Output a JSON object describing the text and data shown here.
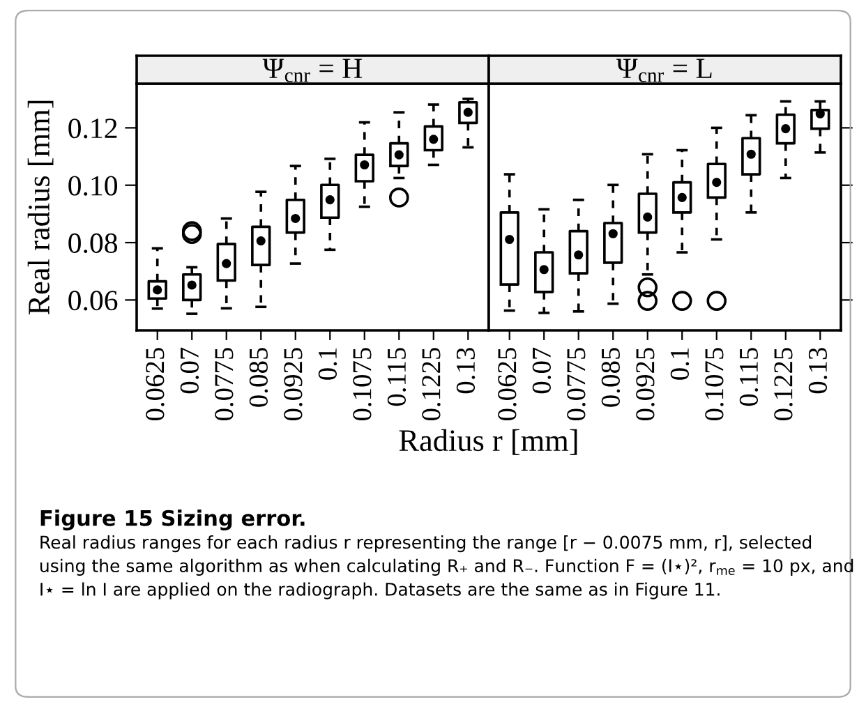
{
  "chart_data": [
    {
      "type": "box",
      "title": "Figure 15 Sizing error.",
      "subtitle": "Ψ$_{cnr}$ = H",
      "xlabel": "Radius r [mm]",
      "ylabel": "Real radius [mm]",
      "annotations": [
        "Real radius ranges for each radius r representing the range [r − 0.0075 mm, r], selected using the same algorithm as when calculating R₊ and R₋. Function F = (I⋆)², r$_{me}$ = 10 px, and I⋆ = ln I are applied on the radiograph. Datasets are the same as in Figure 11."
      ],
      "categories": [
        "0.0625",
        "0.07",
        "0.0775",
        "0.085",
        "0.0925",
        "0.1",
        "0.1075",
        "0.115",
        "0.1225",
        "0.13"
      ],
      "boxes": [
        {
          "low": 0.057,
          "q1": 0.0605,
          "median": 0.0635,
          "q3": 0.0665,
          "high": 0.078
        },
        {
          "low": 0.0552,
          "q1": 0.06,
          "median": 0.0652,
          "q3": 0.0689,
          "high": 0.0714,
          "outliers": [
            0.083,
            0.084
          ]
        },
        {
          "low": 0.0571,
          "q1": 0.0668,
          "median": 0.0727,
          "q3": 0.0795,
          "high": 0.0884
        },
        {
          "low": 0.0576,
          "q1": 0.0722,
          "median": 0.0806,
          "q3": 0.0855,
          "high": 0.0977
        },
        {
          "low": 0.0727,
          "q1": 0.0835,
          "median": 0.0884,
          "q3": 0.0949,
          "high": 0.1067
        },
        {
          "low": 0.0775,
          "q1": 0.0887,
          "median": 0.0949,
          "q3": 0.1001,
          "high": 0.1092
        },
        {
          "low": 0.0925,
          "q1": 0.1014,
          "median": 0.1071,
          "q3": 0.1106,
          "high": 0.1219
        },
        {
          "low": 0.1025,
          "q1": 0.1067,
          "median": 0.1106,
          "q3": 0.1146,
          "high": 0.1254,
          "outliers": [
            0.0957
          ]
        },
        {
          "low": 0.1071,
          "q1": 0.1122,
          "median": 0.116,
          "q3": 0.1205,
          "high": 0.1281
        },
        {
          "low": 0.1132,
          "q1": 0.1217,
          "median": 0.1254,
          "q3": 0.1289,
          "high": 0.1301
        }
      ],
      "ylim": [
        0.0494,
        0.1354
      ],
      "yticks": [
        {
          "value": 0.06,
          "label": "0.06"
        },
        {
          "value": 0.08,
          "label": "0.08"
        },
        {
          "value": 0.1,
          "label": "0.10"
        },
        {
          "value": 0.12,
          "label": "0.12"
        }
      ],
      "grid": false
    },
    {
      "type": "box",
      "subtitle": "Ψ$_{cnr}$ = L",
      "tick_labels": "x",
      "categories": [
        "0.0625",
        "0.07",
        "0.0775",
        "0.085",
        "0.0925",
        "0.1",
        "0.1075",
        "0.115",
        "0.1225",
        "0.13"
      ],
      "boxes": [
        {
          "low": 0.0563,
          "q1": 0.0654,
          "median": 0.0811,
          "q3": 0.0905,
          "high": 0.1038
        },
        {
          "low": 0.0555,
          "q1": 0.0628,
          "median": 0.0706,
          "q3": 0.0766,
          "high": 0.0916
        },
        {
          "low": 0.056,
          "q1": 0.0693,
          "median": 0.0757,
          "q3": 0.084,
          "high": 0.0949
        },
        {
          "low": 0.0587,
          "q1": 0.073,
          "median": 0.0831,
          "q3": 0.0868,
          "high": 0.1001
        },
        {
          "low": 0.0689,
          "q1": 0.0835,
          "median": 0.0889,
          "q3": 0.097,
          "high": 0.1108,
          "outliers": [
            0.0644,
            0.0597
          ]
        },
        {
          "low": 0.0766,
          "q1": 0.0905,
          "median": 0.0957,
          "q3": 0.101,
          "high": 0.1122,
          "outliers": [
            0.0597
          ]
        },
        {
          "low": 0.0811,
          "q1": 0.0957,
          "median": 0.101,
          "q3": 0.1074,
          "high": 0.12,
          "outliers": [
            0.0597
          ]
        },
        {
          "low": 0.0905,
          "q1": 0.1038,
          "median": 0.1108,
          "q3": 0.1164,
          "high": 0.1244
        },
        {
          "low": 0.1025,
          "q1": 0.1146,
          "median": 0.1197,
          "q3": 0.1246,
          "high": 0.1292
        },
        {
          "low": 0.1114,
          "q1": 0.1197,
          "median": 0.1249,
          "q3": 0.1262,
          "high": 0.1292
        }
      ],
      "ylim": [
        0.0494,
        0.1354
      ],
      "yticks": [
        {
          "value": 0.06,
          "label": null
        },
        {
          "value": 0.08,
          "label": null
        },
        {
          "value": 0.1,
          "label": null
        },
        {
          "value": 0.12,
          "label": null
        }
      ],
      "grid": false
    }
  ]
}
